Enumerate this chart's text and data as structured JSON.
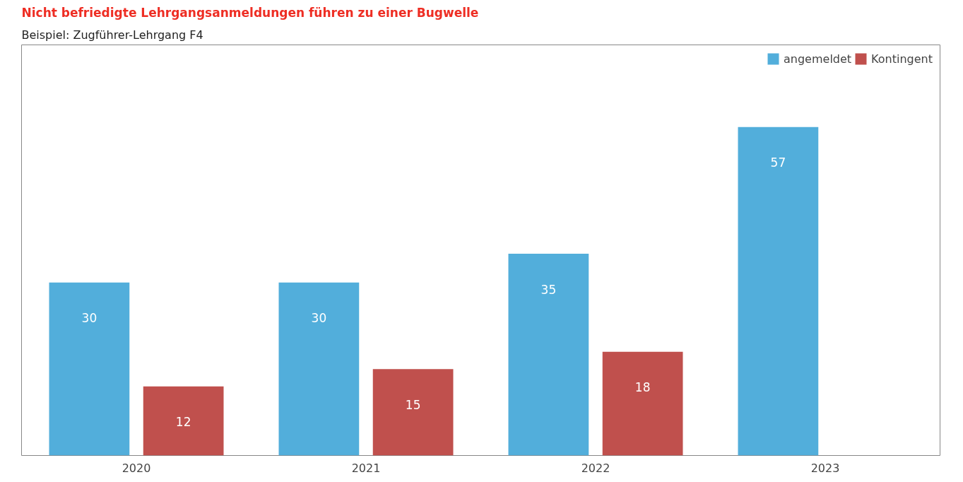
{
  "chart_data": {
    "type": "bar",
    "title": "Nicht befriedigte Lehrgangsanmeldungen führen zu einer Bugwelle",
    "subtitle": "Beispiel: Zugführer-Lehrgang F4",
    "categories": [
      "2020",
      "2021",
      "2022",
      "2023"
    ],
    "series": [
      {
        "name": "angemeldet",
        "color": "#52aedb",
        "values": [
          30,
          30,
          35,
          57
        ]
      },
      {
        "name": "Kontingent",
        "color": "#c0504d",
        "values": [
          12,
          15,
          18,
          null
        ]
      }
    ],
    "data_labels": true,
    "legend": "top right",
    "grid": false
  }
}
